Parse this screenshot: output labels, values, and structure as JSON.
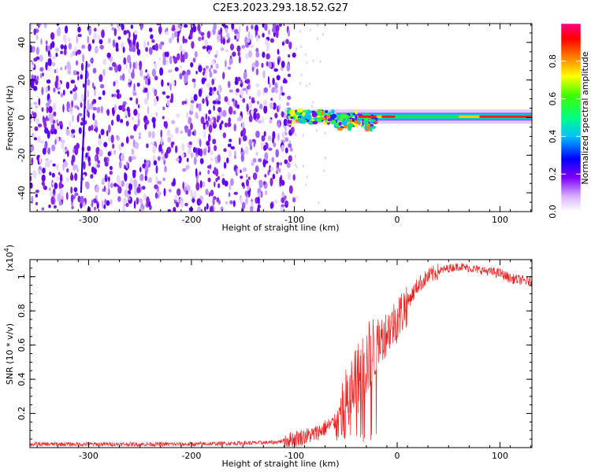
{
  "figure_title": "C2E3.2023.293.18.52.G27",
  "colors": {
    "snr_line": "#ee2222",
    "spec_low": "#8a2be2",
    "spec_band_core": "#ff1a1a"
  },
  "chart_data": [
    {
      "type": "heatmap",
      "title": "",
      "xlabel": "Height of straight line (km)",
      "ylabel": "Frequency (Hz)",
      "xlim": [
        -357,
        131
      ],
      "ylim": [
        -50,
        50
      ],
      "x_ticks": [
        -300,
        -200,
        -100,
        0,
        100
      ],
      "y_ticks": [
        -40,
        -20,
        0,
        20,
        40
      ],
      "noise_region_x": [
        -357,
        -100
      ],
      "band": {
        "center_hz": 0.5,
        "start_x": -105,
        "end_x": 131
      },
      "colorbar": {
        "label": "Normalized spectral amplitude",
        "range": [
          0,
          1
        ],
        "ticks": [
          0.0,
          0.2,
          0.4,
          0.6,
          0.8
        ]
      }
    },
    {
      "type": "line",
      "title": "",
      "xlabel": "Height of straight line (km)",
      "ylabel": "SNR (10 * v/v)",
      "scale_note": "(x10",
      "scale_exp": "4",
      "scale_close": ")",
      "xlim": [
        -357,
        131
      ],
      "ylim": [
        0.0,
        1.1
      ],
      "x_ticks": [
        -300,
        -200,
        -100,
        0,
        100
      ],
      "y_ticks": [
        0.2,
        0.4,
        0.6,
        0.8,
        1.0
      ],
      "series": [
        {
          "x": [
            -357,
            -300,
            -200,
            -120,
            -100,
            -80,
            -60,
            -50,
            -40,
            -30,
            -20,
            -10,
            0,
            10,
            20,
            30,
            40,
            50,
            60,
            70,
            80,
            90,
            100,
            110,
            120,
            131
          ],
          "y": [
            0.02,
            0.02,
            0.02,
            0.03,
            0.05,
            0.08,
            0.15,
            0.25,
            0.38,
            0.5,
            0.6,
            0.68,
            0.75,
            0.85,
            0.95,
            1.0,
            1.03,
            1.05,
            1.06,
            1.05,
            1.04,
            1.03,
            1.02,
            0.99,
            0.98,
            0.97
          ]
        }
      ]
    }
  ]
}
